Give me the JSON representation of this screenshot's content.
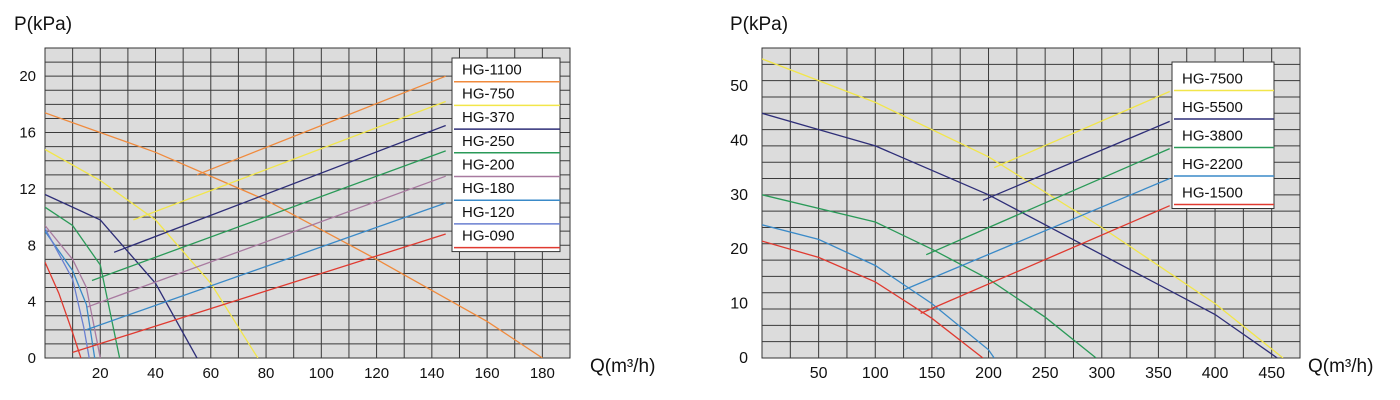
{
  "chart_data": [
    {
      "type": "line",
      "ylabel": "P(kPa)",
      "xlabel": "Q(m³/h)",
      "xlim": [
        0,
        190
      ],
      "ylim": [
        0,
        22
      ],
      "xticks": [
        "20",
        "40",
        "60",
        "80",
        "100",
        "120",
        "140",
        "160",
        "180"
      ],
      "yticks": [
        "0",
        "4",
        "8",
        "12",
        "16",
        "20"
      ],
      "grid": true,
      "legend_position": "top-right",
      "series": [
        {
          "name": "HG-1100",
          "color": "#f08a3c",
          "pump_curve": [
            [
              0,
              17.4
            ],
            [
              40,
              14.6
            ],
            [
              80,
              11.2
            ],
            [
              120,
              7.0
            ],
            [
              160,
              2.6
            ],
            [
              180,
              0
            ]
          ],
          "system_curve": [
            [
              55,
              13.0
            ],
            [
              145,
              20.0
            ]
          ]
        },
        {
          "name": "HG-750",
          "color": "#f2e64a",
          "pump_curve": [
            [
              0,
              14.8
            ],
            [
              20,
              12.6
            ],
            [
              40,
              9.8
            ],
            [
              60,
              5.3
            ],
            [
              77,
              0
            ]
          ],
          "system_curve": [
            [
              32,
              9.8
            ],
            [
              145,
              18.2
            ]
          ]
        },
        {
          "name": "HG-370",
          "color": "#2e2e78",
          "pump_curve": [
            [
              0,
              11.6
            ],
            [
              20,
              9.8
            ],
            [
              40,
              5.3
            ],
            [
              55,
              0
            ]
          ],
          "system_curve": [
            [
              25,
              7.5
            ],
            [
              145,
              16.5
            ]
          ]
        },
        {
          "name": "HG-250",
          "color": "#2a9a58",
          "pump_curve": [
            [
              0,
              10.7
            ],
            [
              10,
              9.4
            ],
            [
              20,
              6.6
            ],
            [
              27,
              0
            ]
          ],
          "system_curve": [
            [
              17,
              5.5
            ],
            [
              145,
              14.7
            ]
          ]
        },
        {
          "name": "HG-200",
          "color": "#a87aa0",
          "pump_curve": [
            [
              0,
              9.4
            ],
            [
              10,
              7.0
            ],
            [
              15,
              5.0
            ],
            [
              20,
              0
            ]
          ],
          "system_curve": [
            [
              15,
              3.6
            ],
            [
              145,
              12.9
            ]
          ]
        },
        {
          "name": "HG-180",
          "color": "#3a8ac8",
          "pump_curve": [
            [
              0,
              9.0
            ],
            [
              10,
              6.2
            ],
            [
              15,
              3.8
            ],
            [
              18,
              0
            ]
          ],
          "system_curve": [
            [
              15,
              2.0
            ],
            [
              145,
              11.0
            ]
          ]
        },
        {
          "name": "HG-120",
          "color": "#6a7fd0",
          "pump_curve": [
            [
              0,
              9.2
            ],
            [
              10,
              5.6
            ],
            [
              14,
              2.2
            ],
            [
              16,
              0
            ]
          ],
          "system_curve": []
        },
        {
          "name": "HG-090",
          "color": "#e03a30",
          "pump_curve": [
            [
              0,
              6.8
            ],
            [
              5,
              4.6
            ],
            [
              10,
              1.8
            ],
            [
              13,
              0
            ]
          ],
          "system_curve": [
            [
              10,
              0.4
            ],
            [
              145,
              8.8
            ]
          ]
        }
      ]
    },
    {
      "type": "line",
      "ylabel": "P(kPa)",
      "xlabel": "Q(m³/h)",
      "xlim": [
        0,
        475
      ],
      "ylim": [
        0,
        57
      ],
      "xticks": [
        "50",
        "100",
        "150",
        "200",
        "250",
        "300",
        "350",
        "400",
        "450"
      ],
      "yticks": [
        "0",
        "10",
        "20",
        "30",
        "40",
        "50"
      ],
      "grid": true,
      "legend_position": "top-right",
      "series": [
        {
          "name": "HG-7500",
          "color": "#f2e64a",
          "pump_curve": [
            [
              0,
              55
            ],
            [
              100,
              47
            ],
            [
              200,
              37
            ],
            [
              300,
              24
            ],
            [
              400,
              10
            ],
            [
              460,
              0
            ]
          ],
          "system_curve": [
            [
              205,
              35
            ],
            [
              360,
              49
            ]
          ]
        },
        {
          "name": "HG-5500",
          "color": "#2e2e78",
          "pump_curve": [
            [
              0,
              45
            ],
            [
              100,
              39
            ],
            [
              200,
              30
            ],
            [
              300,
              19
            ],
            [
              400,
              8
            ],
            [
              455,
              0
            ]
          ],
          "system_curve": [
            [
              195,
              29
            ],
            [
              360,
              43.5
            ]
          ]
        },
        {
          "name": "HG-3800",
          "color": "#2a9a58",
          "pump_curve": [
            [
              0,
              30
            ],
            [
              100,
              25
            ],
            [
              150,
              20
            ],
            [
              200,
              14.5
            ],
            [
              250,
              7.5
            ],
            [
              295,
              0
            ]
          ],
          "system_curve": [
            [
              145,
              19
            ],
            [
              360,
              38.5
            ]
          ]
        },
        {
          "name": "HG-2200",
          "color": "#3a8ac8",
          "pump_curve": [
            [
              0,
              24.5
            ],
            [
              50,
              21.8
            ],
            [
              100,
              17
            ],
            [
              150,
              10
            ],
            [
              200,
              1.5
            ],
            [
              205,
              0
            ]
          ],
          "system_curve": [
            [
              125,
              12.5
            ],
            [
              360,
              33
            ]
          ]
        },
        {
          "name": "HG-1500",
          "color": "#e03a30",
          "pump_curve": [
            [
              0,
              21.5
            ],
            [
              50,
              18.5
            ],
            [
              100,
              14
            ],
            [
              150,
              7.3
            ],
            [
              195,
              0
            ]
          ],
          "system_curve": [
            [
              140,
              8.2
            ],
            [
              360,
              28
            ]
          ]
        }
      ]
    }
  ]
}
